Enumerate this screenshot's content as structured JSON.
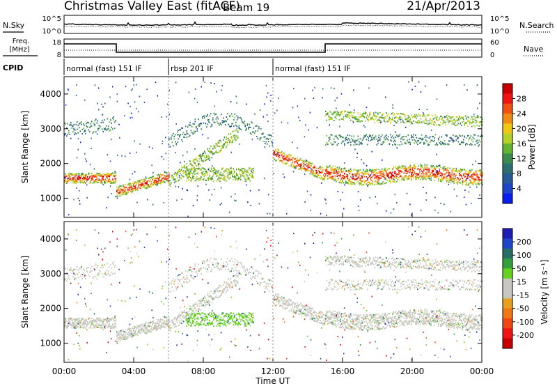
{
  "header": {
    "title": "Christmas Valley East (fitACF)",
    "beam": "Beam 19",
    "date": "21/Apr/2013"
  },
  "noise_panel": {
    "left_label": "N.Sky",
    "right_label": "N.Search",
    "left_ticks": [
      "10^5",
      "10^0"
    ],
    "right_ticks": [
      "10^5",
      "10^0"
    ]
  },
  "freq_panel": {
    "left_label_line1": "Freq.",
    "left_label_line2": "[MHz]",
    "right_label": "Nave",
    "left_ticks": [
      "18",
      "8"
    ],
    "right_ticks": [
      "60",
      "0"
    ],
    "freq_segments_utc_hours": [
      [
        0,
        3.0,
        "high"
      ],
      [
        3.0,
        15.0,
        "low"
      ],
      [
        15.0,
        24,
        "high"
      ]
    ]
  },
  "cpid": {
    "label": "CPID",
    "segments": [
      {
        "start_h": 0,
        "end_h": 6,
        "text": "normal (fast) 151 IF"
      },
      {
        "start_h": 6,
        "end_h": 12,
        "text": "rbsp 201 IF"
      },
      {
        "start_h": 12,
        "end_h": 24,
        "text": "normal (fast) 151 IF"
      }
    ]
  },
  "colors": {
    "power_scale": [
      "#0a1ef0",
      "#1e46c8",
      "#285a96",
      "#2d6e6e",
      "#3c8c50",
      "#64b432",
      "#b4d228",
      "#f0c814",
      "#f08c14",
      "#f05014",
      "#f01414",
      "#c80000"
    ],
    "velocity_scale": [
      "#1e1eb4",
      "#1e46c8",
      "#286e64",
      "#32a03c",
      "#64d21e",
      "#c8c8c0",
      "#c8c8c0",
      "#e6a01e",
      "#f07814",
      "#f04614",
      "#f01414",
      "#c80000"
    ]
  },
  "chart_data": [
    {
      "type": "heatmap",
      "name": "power",
      "xlabel": "",
      "ylabel": "Slant Range [km]",
      "xlim": [
        0,
        24
      ],
      "ylim": [
        450,
        4500
      ],
      "x_ticks": [
        "00:00",
        "04:00",
        "08:00",
        "12:00",
        "16:00",
        "20:00",
        "00:00"
      ],
      "y_ticks": [
        1000,
        2000,
        3000,
        4000
      ],
      "colorbar_label": "Power [dB]",
      "colorbar_ticks": [
        4,
        8,
        12,
        16,
        20,
        24,
        28
      ]
    },
    {
      "type": "heatmap",
      "name": "velocity",
      "xlabel": "Time UT",
      "ylabel": "Slant Range [km]",
      "xlim": [
        0,
        24
      ],
      "ylim": [
        450,
        4500
      ],
      "x_ticks": [
        "00:00",
        "04:00",
        "08:00",
        "12:00",
        "16:00",
        "20:00",
        "00:00"
      ],
      "y_ticks": [
        1000,
        2000,
        3000,
        4000
      ],
      "colorbar_label": "Velocity [m s⁻¹]",
      "colorbar_ticks": [
        200,
        100,
        50,
        15,
        -15,
        -50,
        -100,
        -200
      ]
    }
  ]
}
